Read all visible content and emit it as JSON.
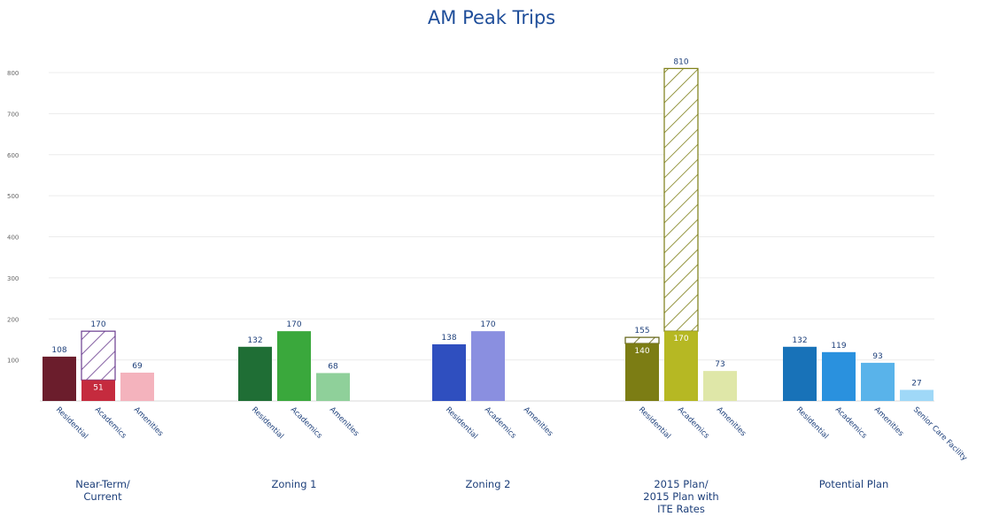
{
  "chart_data": {
    "type": "bar",
    "title": "AM Peak Trips",
    "ylim": [
      0,
      800
    ],
    "y_ticks": [
      100,
      200,
      300,
      400,
      500,
      600,
      700,
      800
    ],
    "y_tick_labels": [
      "100",
      "200",
      "300",
      "400",
      "500",
      "600",
      "700",
      "800"
    ],
    "grid": true,
    "legend": "none",
    "groups": [
      {
        "label_lines": [
          "Near-Term/",
          "Current"
        ],
        "bars": [
          {
            "category": "Residential",
            "value": 108,
            "label": "108",
            "color": "#6b1d2c"
          },
          {
            "category": "Academics",
            "value": 170,
            "label": "170",
            "color": "#c52b3e",
            "solid_value": 51,
            "solid_label": "51",
            "hatch_color": "#6a3d8f"
          },
          {
            "category": "Amenities",
            "value": 69,
            "label": "69",
            "color": "#f4b3bd"
          }
        ]
      },
      {
        "label_lines": [
          "Zoning 1"
        ],
        "bars": [
          {
            "category": "Residential",
            "value": 132,
            "label": "132",
            "color": "#1f6e35"
          },
          {
            "category": "Academics",
            "value": 170,
            "label": "170",
            "color": "#3aa83c"
          },
          {
            "category": "Amenities",
            "value": 68,
            "label": "68",
            "color": "#8fd09a"
          }
        ]
      },
      {
        "label_lines": [
          "Zoning 2"
        ],
        "bars": [
          {
            "category": "Residential",
            "value": 138,
            "label": "138",
            "color": "#2f4fbf"
          },
          {
            "category": "Academics",
            "value": 170,
            "label": "170",
            "color": "#8a8fe0"
          },
          {
            "category": "Amenities",
            "value": 0,
            "label": "",
            "color": "#c9ccf2"
          }
        ]
      },
      {
        "label_lines": [
          "2015 Plan/",
          "2015 Plan with",
          "ITE Rates"
        ],
        "bars": [
          {
            "category": "Residential",
            "value": 155,
            "label": "155",
            "color": "#7c7d14",
            "solid_value": 140,
            "solid_label": "140",
            "hatch_color": "#5f6010"
          },
          {
            "category": "Academics",
            "value": 810,
            "label": "810",
            "color": "#b6b823",
            "solid_value": 170,
            "solid_label": "170",
            "hatch_color": "#7c7d14"
          },
          {
            "category": "Amenities",
            "value": 73,
            "label": "73",
            "color": "#dfe7a8"
          }
        ]
      },
      {
        "label_lines": [
          "Potential Plan"
        ],
        "bars": [
          {
            "category": "Residential",
            "value": 132,
            "label": "132",
            "color": "#1872b8"
          },
          {
            "category": "Academics",
            "value": 119,
            "label": "119",
            "color": "#2a91de"
          },
          {
            "category": "Amenities",
            "value": 93,
            "label": "93",
            "color": "#59b3ea"
          },
          {
            "category": "Senior Care Facility",
            "value": 27,
            "label": "27",
            "color": "#9fd8f7"
          }
        ]
      }
    ]
  }
}
